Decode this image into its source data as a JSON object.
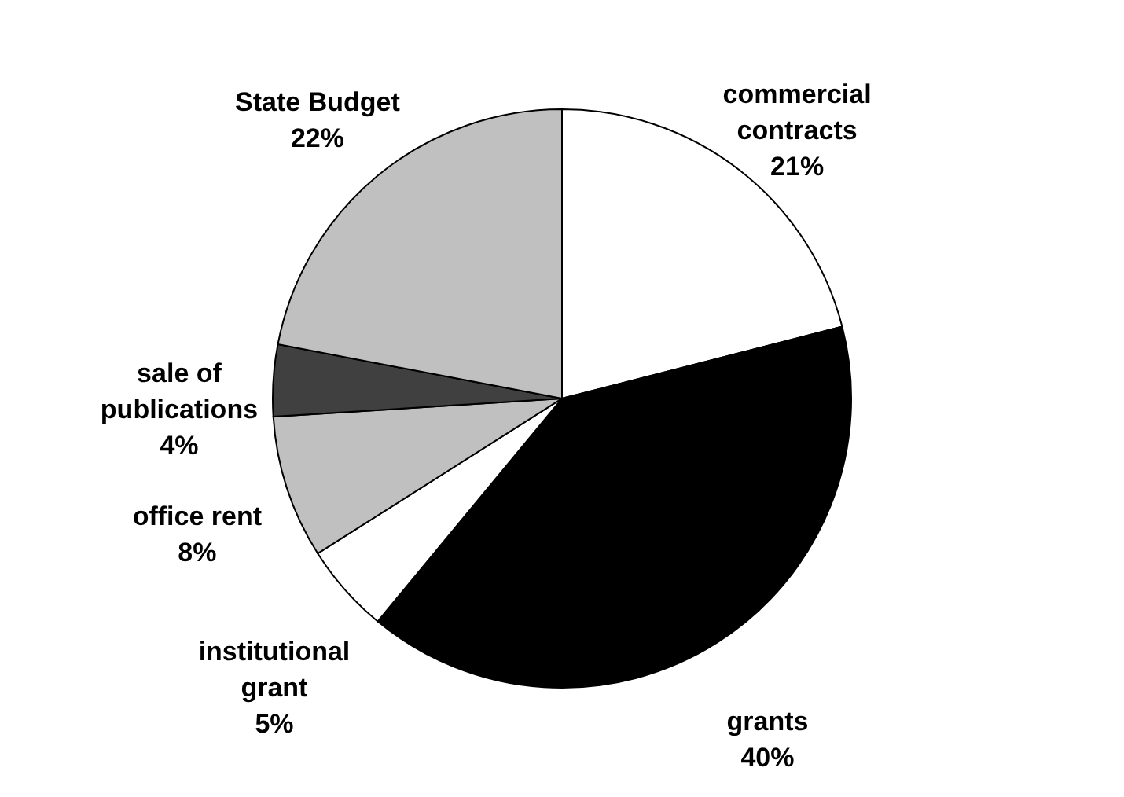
{
  "chart_data": {
    "type": "pie",
    "categories": [
      "commercial contracts",
      "grants",
      "institutional grant",
      "office rent",
      "sale of publications",
      "State Budget"
    ],
    "values": [
      21,
      40,
      5,
      8,
      4,
      22
    ],
    "colors": [
      "#ffffff",
      "#000000",
      "#ffffff",
      "#c0c0c0",
      "#404040",
      "#c0c0c0"
    ],
    "value_labels": [
      "21%",
      "40%",
      "5%",
      "8%",
      "4%",
      "22%"
    ]
  }
}
